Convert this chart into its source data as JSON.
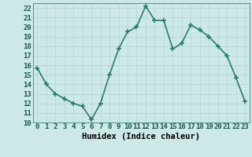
{
  "x": [
    0,
    1,
    2,
    3,
    4,
    5,
    6,
    7,
    8,
    9,
    10,
    11,
    12,
    13,
    14,
    15,
    16,
    17,
    18,
    19,
    20,
    21,
    22,
    23
  ],
  "y": [
    15.7,
    14.0,
    13.0,
    12.5,
    12.0,
    11.7,
    10.3,
    12.0,
    15.0,
    17.7,
    19.5,
    20.0,
    22.2,
    20.7,
    20.7,
    17.7,
    18.3,
    20.2,
    19.7,
    19.0,
    18.0,
    17.0,
    14.7,
    12.2
  ],
  "line_color": "#2d7a6e",
  "marker": "+",
  "marker_size": 5,
  "bg_color": "#cce9e7",
  "grid_color": "#b8d8d5",
  "xlabel": "Humidex (Indice chaleur)",
  "ylabel_ticks": [
    10,
    11,
    12,
    13,
    14,
    15,
    16,
    17,
    18,
    19,
    20,
    21,
    22
  ],
  "xlim": [
    -0.5,
    23.5
  ],
  "ylim": [
    10,
    22.5
  ],
  "xlabel_fontsize": 7.5,
  "tick_fontsize": 6.5,
  "line_width": 1.2
}
